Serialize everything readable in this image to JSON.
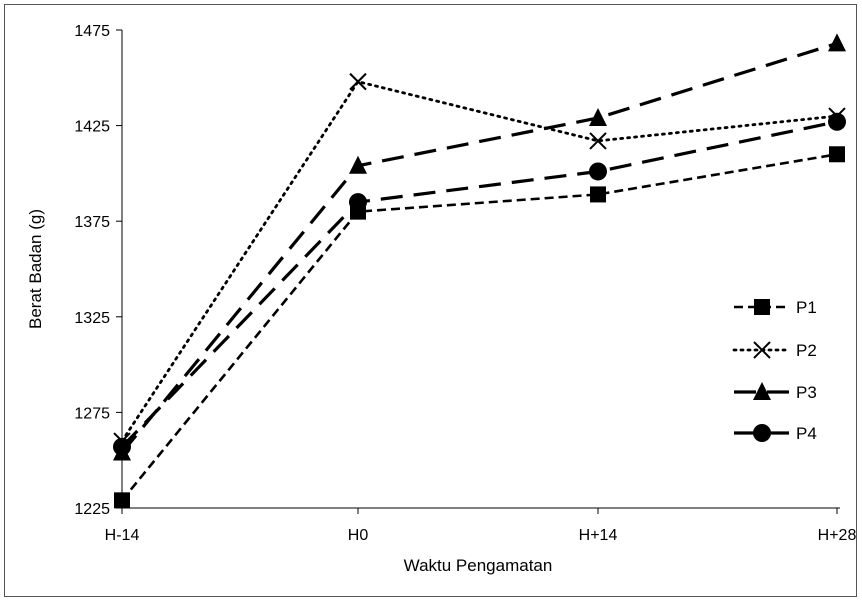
{
  "chart_data": {
    "type": "line",
    "title": "",
    "xlabel": "Waktu Pengamatan",
    "ylabel": "Berat Badan (g)",
    "categories": [
      "H-14",
      "H0",
      "H+14",
      "H+28"
    ],
    "ylim": [
      1225,
      1475
    ],
    "yticks": [
      1225,
      1275,
      1325,
      1375,
      1425,
      1475
    ],
    "grid": false,
    "legend_position": "right",
    "series": [
      {
        "name": "P1",
        "values": [
          1229,
          1380,
          1389,
          1410
        ],
        "marker": "square",
        "dash": "short-dash",
        "color": "#000000"
      },
      {
        "name": "P2",
        "values": [
          1260,
          1448,
          1417,
          1430
        ],
        "marker": "x",
        "dash": "dotted",
        "color": "#000000"
      },
      {
        "name": "P3",
        "values": [
          1254,
          1404,
          1429,
          1468
        ],
        "marker": "triangle",
        "dash": "long-dash",
        "color": "#000000"
      },
      {
        "name": "P4",
        "values": [
          1257,
          1385,
          1401,
          1427
        ],
        "marker": "circle",
        "dash": "long-dash",
        "color": "#000000"
      }
    ]
  }
}
